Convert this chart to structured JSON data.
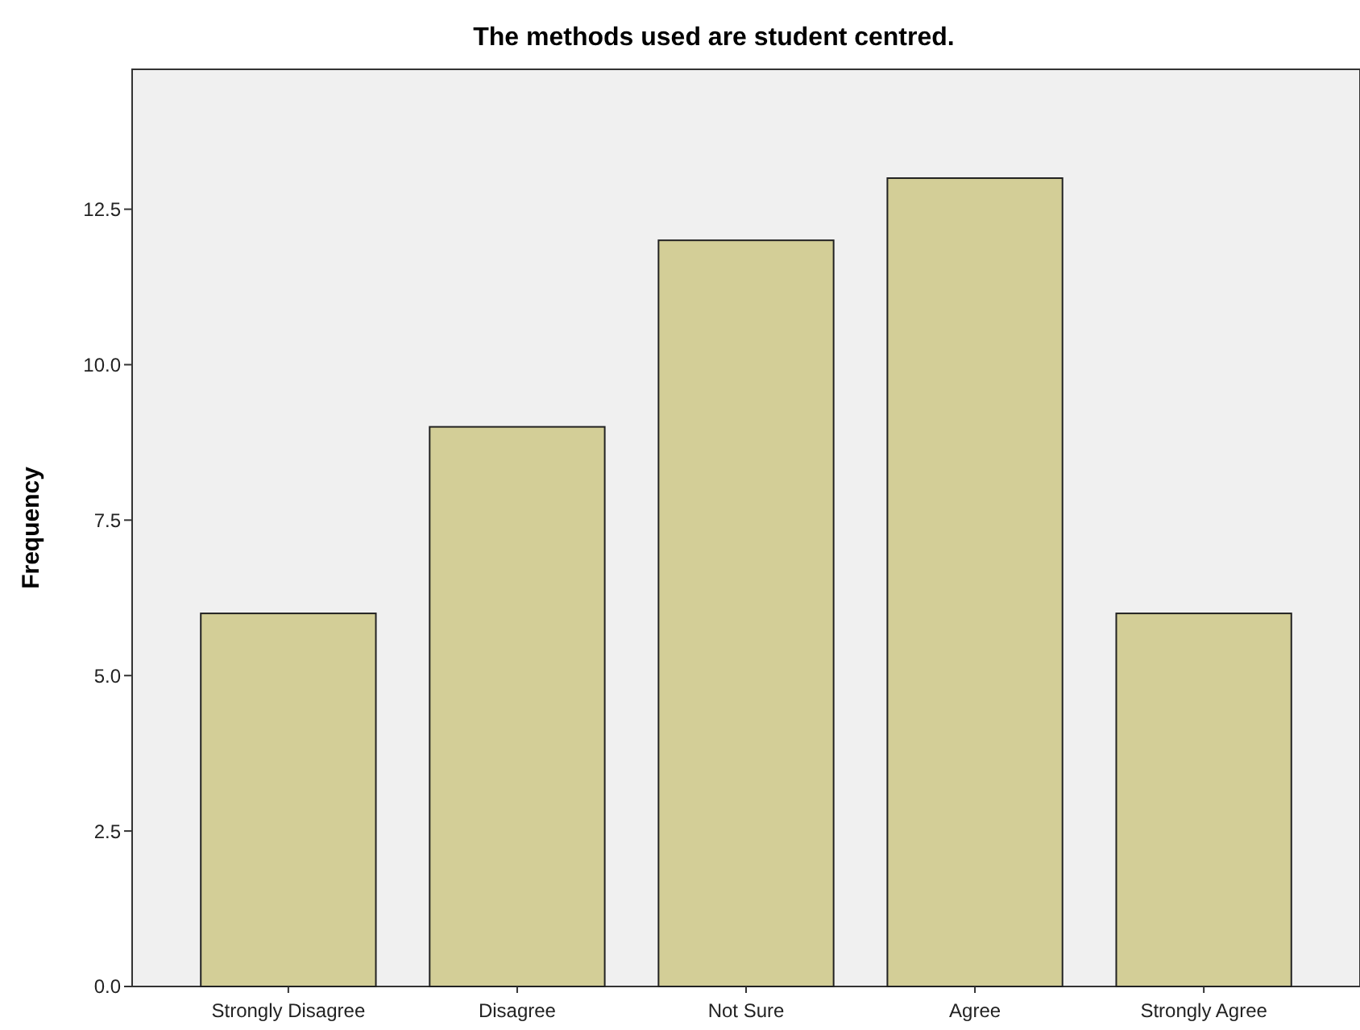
{
  "chart_data": {
    "type": "bar",
    "title": "The methods used are student centred.",
    "ylabel": "Frequency",
    "categories": [
      "Strongly Disagree",
      "Disagree",
      "Not Sure",
      "Agree",
      "Strongly Agree"
    ],
    "values": [
      6,
      9,
      12,
      13,
      6
    ],
    "color": "#d3ce97",
    "ylim": [
      0,
      14.75
    ],
    "yticks": [
      {
        "value": 0,
        "label": "0.0"
      },
      2.5,
      {
        "value": 5,
        "label": "5.0"
      },
      7.5,
      {
        "value": 10,
        "label": "10.0"
      },
      12.5
    ],
    "grid": false
  }
}
